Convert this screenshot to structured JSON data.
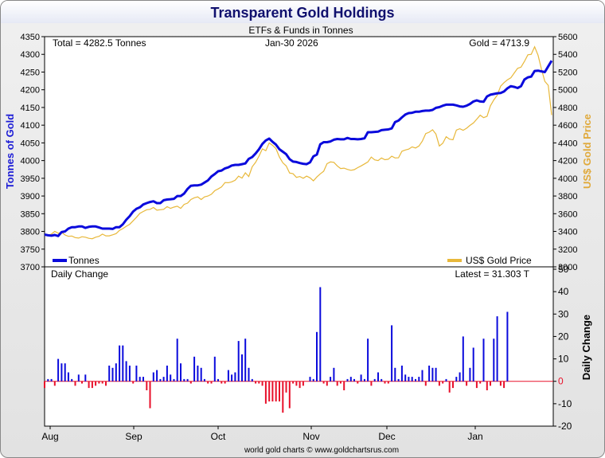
{
  "chart_data": [
    {
      "type": "line",
      "title": "Transparent Gold Holdings",
      "subtitle": "ETFs & Funds in Tonnes",
      "date_label": "Jan-30  2026",
      "total_label": "Total = 4282.5 Tonnes",
      "gold_label": "Gold = 4713.9",
      "ylabel": "Tonnes of Gold",
      "y2label": "US$ Gold Price",
      "ylim": [
        3700,
        4350
      ],
      "y2lim": [
        3000,
        5600
      ],
      "y_ticks": [
        "3700",
        "3750",
        "3800",
        "3850",
        "3900",
        "3950",
        "4000",
        "4050",
        "4100",
        "4150",
        "4200",
        "4250",
        "4300",
        "4350"
      ],
      "y2_ticks": [
        "3000",
        "3200",
        "3400",
        "3600",
        "3800",
        "4000",
        "4200",
        "4400",
        "4600",
        "4800",
        "5000",
        "5200",
        "5400",
        "5600"
      ],
      "grid": false,
      "legend": "bottom",
      "series": [
        {
          "name": "Tonnes",
          "color": "#0a0adc",
          "values": [
            3791,
            3789,
            3788,
            3790,
            3787,
            3798,
            3800,
            3808,
            3812,
            3812,
            3814,
            3814,
            3810,
            3813,
            3814,
            3814,
            3811,
            3808,
            3808,
            3808,
            3807,
            3812,
            3812,
            3820,
            3833,
            3843,
            3856,
            3864,
            3868,
            3876,
            3880,
            3883,
            3885,
            3880,
            3880,
            3888,
            3890,
            3891,
            3892,
            3900,
            3900,
            3907,
            3920,
            3929,
            3930,
            3930,
            3932,
            3938,
            3944,
            3955,
            3962,
            3970,
            3972,
            3978,
            3981,
            3986,
            3988,
            3988,
            3990,
            3992,
            4005,
            4010,
            4020,
            4032,
            4047,
            4057,
            4062,
            4053,
            4045,
            4032,
            4025,
            4018,
            4004,
            3997,
            3996,
            3993,
            3991,
            3990,
            3995,
            4012,
            4017,
            4046,
            4052,
            4052,
            4054,
            4059,
            4061,
            4060,
            4060,
            4064,
            4061,
            4061,
            4060,
            4061,
            4063,
            4080,
            4080,
            4081,
            4082,
            4086,
            4087,
            4088,
            4091,
            4109,
            4113,
            4122,
            4130,
            4134,
            4135,
            4138,
            4138,
            4140,
            4141,
            4141,
            4143,
            4149,
            4151,
            4155,
            4158,
            4158,
            4158,
            4156,
            4153,
            4152,
            4155,
            4160,
            4167,
            4170,
            4167,
            4166,
            4181,
            4186,
            4188,
            4190,
            4191,
            4195,
            4204,
            4210,
            4208,
            4205,
            4210,
            4229,
            4235,
            4237,
            4253,
            4254,
            4252,
            4250,
            4266,
            4282
          ]
        },
        {
          "name": "US$ Gold Price",
          "color": "#e8b83a",
          "values": [
            3360,
            3355,
            3370,
            3400,
            3380,
            3390,
            3360,
            3345,
            3348,
            3330,
            3325,
            3340,
            3335,
            3322,
            3318,
            3335,
            3345,
            3370,
            3350,
            3350,
            3362,
            3375,
            3412,
            3432,
            3458,
            3480,
            3520,
            3560,
            3605,
            3625,
            3645,
            3650,
            3670,
            3640,
            3645,
            3650,
            3680,
            3660,
            3675,
            3685,
            3660,
            3705,
            3720,
            3760,
            3780,
            3790,
            3760,
            3790,
            3800,
            3820,
            3860,
            3880,
            3902,
            3952,
            3950,
            3960,
            3978,
            4025,
            4002,
            4062,
            4020,
            4130,
            4180,
            4250,
            4332,
            4312,
            4400,
            4372,
            4335,
            4240,
            4175,
            4140,
            4060,
            4052,
            4010,
            4020,
            4000,
            4025,
            4005,
            3972,
            4015,
            4050,
            4080,
            4165,
            4185,
            4180,
            4140,
            4110,
            4115,
            4100,
            4090,
            4098,
            4120,
            4140,
            4162,
            4185,
            4240,
            4208,
            4200,
            4230,
            4210,
            4215,
            4250,
            4230,
            4232,
            4305,
            4320,
            4330,
            4355,
            4342,
            4365,
            4420,
            4505,
            4520,
            4548,
            4500,
            4365,
            4395,
            4470,
            4442,
            4435,
            4545,
            4560,
            4542,
            4565,
            4598,
            4625,
            4668,
            4713,
            4685,
            4700,
            4818,
            4885,
            4938,
            5040,
            5080,
            5112,
            5135,
            5190,
            5242,
            5255,
            5320,
            5395,
            5400,
            5485,
            5390,
            5232,
            5095,
            5050,
            4714
          ]
        },
        {
          "name": "Daily Change",
          "color": "#0a0adc",
          "neg_color": "#e8102a",
          "title": "Daily Change",
          "latest_label": "Latest = 31.303 T",
          "ylabel": "Daily Change",
          "ylim": [
            -20,
            50
          ],
          "y_ticks": [
            "-20",
            "-10",
            "0",
            "10",
            "20",
            "30",
            "40",
            "50"
          ],
          "values": [
            -3,
            1,
            1,
            -2,
            10,
            8,
            8,
            4,
            1,
            -2,
            3,
            -1,
            3,
            -3,
            -3,
            -2,
            -1,
            -1,
            -2,
            7,
            6,
            8,
            16,
            16,
            9,
            7,
            -1,
            7,
            2,
            2,
            -4,
            -12,
            4,
            5,
            1,
            2,
            7,
            3,
            1,
            19,
            8,
            1,
            1,
            -1,
            11,
            7,
            6,
            1,
            -1,
            -1,
            11,
            1,
            -1,
            -1,
            5,
            3,
            4,
            18,
            12,
            19,
            6,
            1,
            -1,
            -1,
            -2,
            -10,
            -9,
            -9,
            -9,
            -9,
            -14,
            -5,
            -12,
            -1,
            -2,
            -3,
            -2,
            0,
            2,
            1,
            22,
            42,
            -1,
            -2,
            2,
            6,
            -2,
            -1,
            -4,
            1,
            2,
            1,
            -1,
            3,
            1,
            19,
            -2,
            1,
            4,
            1,
            -1,
            -1,
            25,
            6,
            1,
            7,
            3,
            2,
            2,
            1,
            2,
            5,
            -2,
            7,
            6,
            6,
            -2,
            -1,
            1,
            -5,
            -3,
            2,
            4,
            20,
            -2,
            6,
            15,
            -3,
            -1,
            19,
            -4,
            -2,
            19,
            29,
            -2,
            -3,
            31
          ]
        }
      ],
      "x_labels": [
        "Aug",
        "Sep",
        "Oct",
        "Nov",
        "Dec",
        "Jan"
      ],
      "footer": "world gold charts © www.goldchartsrus.com"
    }
  ]
}
